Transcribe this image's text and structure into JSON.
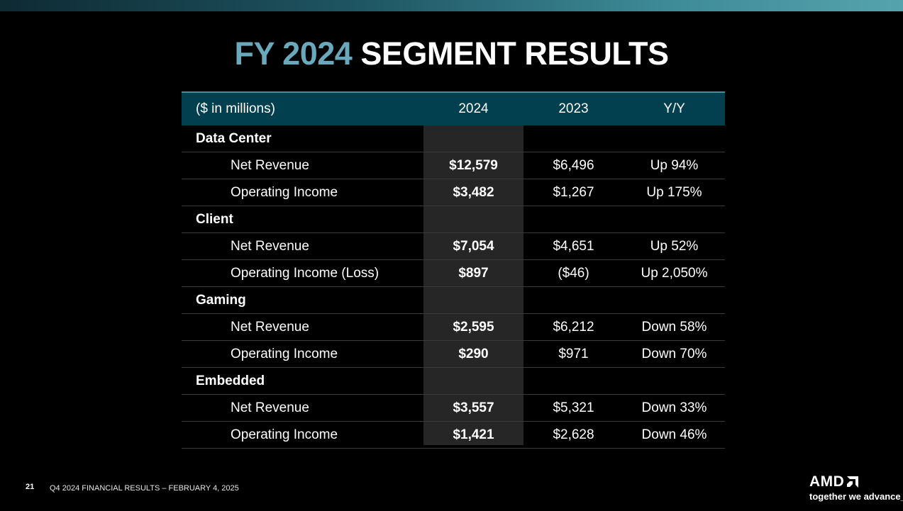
{
  "slide": {
    "title_accent": "FY 2024",
    "title_main": "SEGMENT RESULTS"
  },
  "table": {
    "header": {
      "label": "($ in millions)",
      "col_2024": "2024",
      "col_2023": "2023",
      "col_yy": "Y/Y"
    },
    "segments": [
      {
        "name": "Data Center",
        "rows": [
          {
            "label": "Net Revenue",
            "v2024": "$12,579",
            "v2023": "$6,496",
            "yy": "Up 94%"
          },
          {
            "label": "Operating Income",
            "v2024": "$3,482",
            "v2023": "$1,267",
            "yy": "Up 175%"
          }
        ]
      },
      {
        "name": "Client",
        "rows": [
          {
            "label": "Net Revenue",
            "v2024": "$7,054",
            "v2023": "$4,651",
            "yy": "Up 52%"
          },
          {
            "label": "Operating Income (Loss)",
            "v2024": "$897",
            "v2023": "($46)",
            "yy": "Up 2,050%"
          }
        ]
      },
      {
        "name": "Gaming",
        "rows": [
          {
            "label": "Net Revenue",
            "v2024": "$2,595",
            "v2023": "$6,212",
            "yy": "Down 58%"
          },
          {
            "label": "Operating Income",
            "v2024": "$290",
            "v2023": "$971",
            "yy": "Down 70%"
          }
        ]
      },
      {
        "name": "Embedded",
        "rows": [
          {
            "label": "Net Revenue",
            "v2024": "$3,557",
            "v2023": "$5,321",
            "yy": "Down 33%"
          },
          {
            "label": "Operating Income",
            "v2024": "$1,421",
            "v2023": "$2,628",
            "yy": "Down 46%"
          }
        ]
      }
    ]
  },
  "footer": {
    "page_number": "21",
    "text": "Q4 2024 FINANCIAL RESULTS – FEBRUARY 4, 2025"
  },
  "logo": {
    "wordmark": "AMD",
    "tagline": "together we advance_",
    "icon": "amd-arrow-icon"
  },
  "colors": {
    "accent": "#6aa9bb",
    "header_bg": "#03404f",
    "highlight_col": "#262626"
  }
}
